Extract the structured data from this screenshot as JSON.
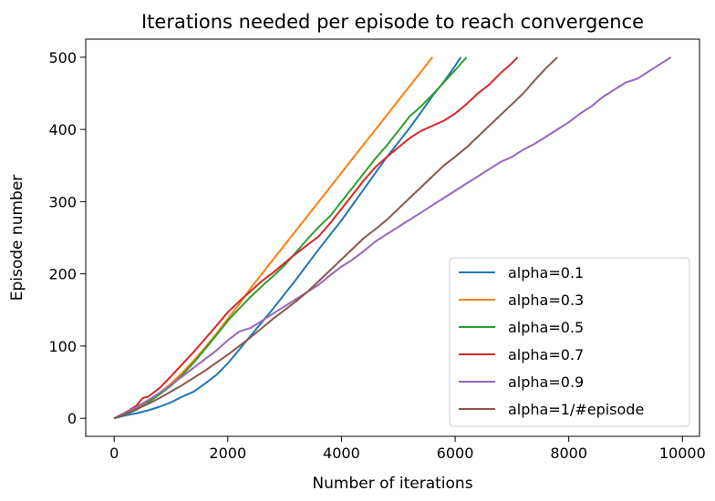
{
  "chart_data": {
    "type": "line",
    "title": "Iterations needed per episode to reach convergence",
    "xlabel": "Number of iterations",
    "ylabel": "Episode number",
    "xlim": [
      -500,
      10300
    ],
    "ylim": [
      -25,
      525
    ],
    "xticks": [
      0,
      2000,
      4000,
      6000,
      8000,
      10000
    ],
    "yticks": [
      0,
      100,
      200,
      300,
      400,
      500
    ],
    "grid": false,
    "legend_position": "lower right",
    "series": [
      {
        "name": "alpha=0.1",
        "color": "#1f77b4",
        "x": [
          0,
          200,
          400,
          600,
          800,
          1000,
          1200,
          1400,
          1600,
          1800,
          2000,
          2200,
          2400,
          2600,
          2800,
          3000,
          3200,
          3400,
          3600,
          3800,
          4000,
          4200,
          4400,
          4600,
          4800,
          5000,
          5200,
          5400,
          5600,
          5800,
          6000,
          6100
        ],
        "y": [
          0,
          4,
          7,
          11,
          16,
          22,
          30,
          37,
          48,
          60,
          76,
          95,
          114,
          133,
          152,
          172,
          192,
          213,
          234,
          254,
          274,
          296,
          318,
          340,
          362,
          382,
          402,
          424,
          446,
          466,
          488,
          500
        ]
      },
      {
        "name": "alpha=0.3",
        "color": "#ff7f0e",
        "x": [
          0,
          200,
          400,
          600,
          800,
          1000,
          1200,
          1400,
          1600,
          1800,
          2000,
          2200,
          2400,
          2600,
          2800,
          3000,
          3200,
          3400,
          3600,
          3800,
          4000,
          4200,
          4400,
          4600,
          4800,
          5000,
          5200,
          5400,
          5600
        ],
        "y": [
          0,
          6,
          15,
          24,
          35,
          48,
          63,
          80,
          98,
          117,
          138,
          158,
          180,
          200,
          220,
          240,
          260,
          280,
          300,
          320,
          340,
          360,
          380,
          400,
          420,
          440,
          460,
          480,
          500
        ]
      },
      {
        "name": "alpha=0.5",
        "color": "#2ca02c",
        "x": [
          0,
          200,
          400,
          600,
          800,
          1000,
          1200,
          1400,
          1600,
          1800,
          2000,
          2200,
          2400,
          2600,
          2800,
          3000,
          3200,
          3400,
          3600,
          3800,
          4000,
          4200,
          4400,
          4600,
          4800,
          5000,
          5200,
          5400,
          5600,
          5800,
          6000,
          6200
        ],
        "y": [
          0,
          5,
          12,
          22,
          33,
          45,
          60,
          77,
          96,
          115,
          135,
          152,
          168,
          183,
          197,
          212,
          230,
          248,
          265,
          280,
          300,
          320,
          340,
          360,
          378,
          398,
          418,
          432,
          448,
          465,
          482,
          500
        ]
      },
      {
        "name": "alpha=0.7",
        "color": "#d62728",
        "x": [
          0,
          200,
          400,
          500,
          600,
          800,
          1000,
          1200,
          1400,
          1600,
          1800,
          2000,
          2200,
          2400,
          2600,
          2800,
          3000,
          3200,
          3400,
          3600,
          3800,
          4000,
          4200,
          4400,
          4600,
          4800,
          5000,
          5200,
          5400,
          5600,
          5800,
          6000,
          6200,
          6400,
          6600,
          6800,
          7000,
          7100
        ],
        "y": [
          0,
          8,
          18,
          28,
          30,
          42,
          58,
          75,
          92,
          110,
          128,
          147,
          162,
          176,
          190,
          202,
          215,
          228,
          240,
          252,
          270,
          290,
          310,
          330,
          348,
          362,
          375,
          388,
          398,
          405,
          412,
          422,
          435,
          450,
          462,
          478,
          492,
          500
        ]
      },
      {
        "name": "alpha=0.9",
        "color": "#9467bd",
        "x": [
          0,
          200,
          400,
          600,
          800,
          1000,
          1200,
          1400,
          1600,
          1800,
          2000,
          2200,
          2400,
          2600,
          2800,
          3000,
          3200,
          3400,
          3600,
          3800,
          4000,
          4200,
          4400,
          4600,
          4800,
          5000,
          5200,
          5400,
          5600,
          5800,
          6000,
          6200,
          6400,
          6600,
          6800,
          7000,
          7200,
          7400,
          7600,
          7800,
          8000,
          8200,
          8400,
          8600,
          8800,
          9000,
          9200,
          9400,
          9600,
          9800
        ],
        "y": [
          0,
          8,
          16,
          25,
          35,
          46,
          58,
          70,
          82,
          94,
          108,
          120,
          125,
          135,
          145,
          155,
          165,
          175,
          185,
          198,
          210,
          220,
          232,
          245,
          255,
          265,
          275,
          285,
          295,
          305,
          315,
          325,
          335,
          345,
          355,
          362,
          372,
          380,
          390,
          400,
          410,
          422,
          432,
          445,
          455,
          465,
          470,
          480,
          490,
          500
        ]
      },
      {
        "name": "alpha=1/#episode",
        "color": "#8c564b",
        "x": [
          0,
          200,
          400,
          600,
          800,
          1000,
          1200,
          1400,
          1600,
          1800,
          2000,
          2200,
          2400,
          2600,
          2800,
          3000,
          3200,
          3400,
          3600,
          3800,
          4000,
          4200,
          4400,
          4600,
          4800,
          5000,
          5200,
          5400,
          5600,
          5800,
          6000,
          6200,
          6400,
          6600,
          6800,
          7000,
          7200,
          7400,
          7600,
          7800
        ],
        "y": [
          0,
          6,
          13,
          20,
          28,
          37,
          46,
          56,
          66,
          77,
          88,
          100,
          112,
          125,
          138,
          150,
          162,
          175,
          190,
          205,
          220,
          235,
          250,
          262,
          275,
          290,
          305,
          320,
          335,
          350,
          362,
          375,
          390,
          405,
          420,
          435,
          450,
          468,
          485,
          500
        ]
      }
    ]
  }
}
